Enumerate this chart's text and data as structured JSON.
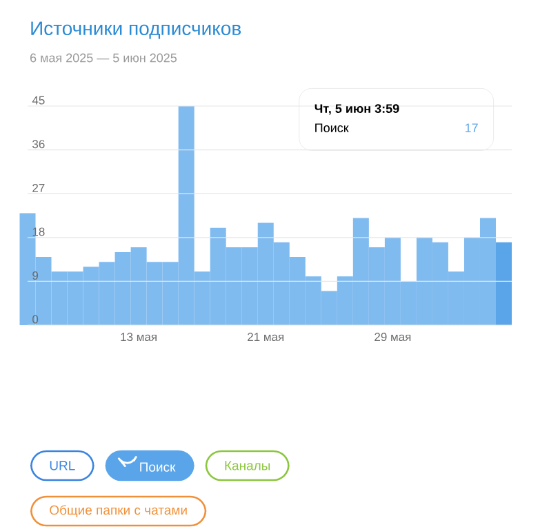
{
  "chart_data": {
    "type": "bar",
    "title": "Источники подписчиков",
    "subtitle": "6 мая 2025 — 5 июн 2025",
    "x": [
      "2025-05-06",
      "2025-05-07",
      "2025-05-08",
      "2025-05-09",
      "2025-05-10",
      "2025-05-11",
      "2025-05-12",
      "2025-05-13",
      "2025-05-14",
      "2025-05-15",
      "2025-05-16",
      "2025-05-17",
      "2025-05-18",
      "2025-05-19",
      "2025-05-20",
      "2025-05-21",
      "2025-05-22",
      "2025-05-23",
      "2025-05-24",
      "2025-05-25",
      "2025-05-26",
      "2025-05-27",
      "2025-05-28",
      "2025-05-29",
      "2025-05-30",
      "2025-05-31",
      "2025-06-01",
      "2025-06-02",
      "2025-06-03",
      "2025-06-04",
      "2025-06-05"
    ],
    "xlim": [
      "2025-05-06",
      "2025-06-05T12:00"
    ],
    "xticks": [
      {
        "value": "2025-05-13",
        "label": "13 мая"
      },
      {
        "value": "2025-05-21",
        "label": "21 мая"
      },
      {
        "value": "2025-05-29",
        "label": "29 мая"
      }
    ],
    "ylim": [
      0,
      45
    ],
    "yticks": [
      0,
      9,
      18,
      27,
      36,
      45
    ],
    "grid": "y",
    "legend": "bottom",
    "series": [
      {
        "name": "URL",
        "color": "#3a84e0",
        "values": [
          null,
          null,
          null,
          null,
          null,
          null,
          null,
          null,
          null,
          null,
          null,
          null,
          null,
          null,
          null,
          null,
          null,
          null,
          null,
          null,
          null,
          null,
          null,
          null,
          null,
          null,
          null,
          null,
          null,
          null,
          null
        ]
      },
      {
        "name": "Поиск",
        "color": "#5aa5ea",
        "colors": [
          "#80bbf0",
          "#80bbf0",
          "#80bbf0",
          "#80bbf0",
          "#80bbf0",
          "#80bbf0",
          "#80bbf0",
          "#80bbf0",
          "#80bbf0",
          "#80bbf0",
          "#80bbf0",
          "#80bbf0",
          "#80bbf0",
          "#80bbf0",
          "#80bbf0",
          "#80bbf0",
          "#80bbf0",
          "#80bbf0",
          "#80bbf0",
          "#80bbf0",
          "#80bbf0",
          "#80bbf0",
          "#80bbf0",
          "#80bbf0",
          "#80bbf0",
          "#80bbf0",
          "#80bbf0",
          "#80bbf0",
          "#80bbf0",
          "#80bbf0",
          "#5aa5ea"
        ],
        "values": [
          23,
          14,
          11,
          11,
          12,
          13,
          15,
          16,
          13,
          13,
          45,
          11,
          20,
          16,
          16,
          21,
          17,
          14,
          10,
          7,
          10,
          22,
          16,
          18,
          9,
          18,
          17,
          11,
          18,
          22,
          17
        ]
      },
      {
        "name": "Каналы",
        "color": "#8cc63e",
        "values": [
          null,
          null,
          null,
          null,
          null,
          null,
          null,
          null,
          null,
          null,
          null,
          null,
          null,
          null,
          null,
          null,
          null,
          null,
          null,
          null,
          null,
          null,
          null,
          null,
          null,
          null,
          null,
          null,
          null,
          null,
          null
        ]
      },
      {
        "name": "Общие папки с чатами",
        "color": "#f0913a",
        "values": [
          null,
          null,
          null,
          null,
          null,
          null,
          null,
          null,
          null,
          null,
          null,
          null,
          null,
          null,
          null,
          null,
          null,
          null,
          null,
          null,
          null,
          null,
          null,
          null,
          null,
          null,
          null,
          null,
          null,
          null,
          null
        ]
      }
    ],
    "annotations": [
      "Чт, 5 июн 3:59",
      "17"
    ]
  }
}
